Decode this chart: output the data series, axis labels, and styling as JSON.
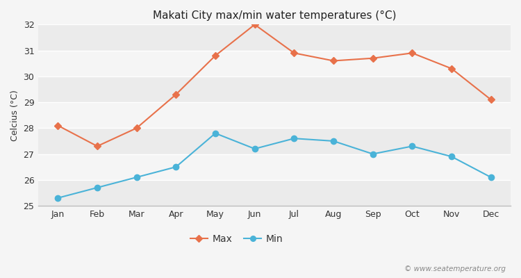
{
  "months": [
    "Jan",
    "Feb",
    "Mar",
    "Apr",
    "May",
    "Jun",
    "Jul",
    "Aug",
    "Sep",
    "Oct",
    "Nov",
    "Dec"
  ],
  "max_temps": [
    28.1,
    27.3,
    28.0,
    29.3,
    30.8,
    32.0,
    30.9,
    30.6,
    30.7,
    30.9,
    30.3,
    29.1
  ],
  "min_temps": [
    25.3,
    25.7,
    26.1,
    26.5,
    27.8,
    27.2,
    27.6,
    27.5,
    27.0,
    27.3,
    26.9,
    26.1
  ],
  "max_color": "#e8714a",
  "min_color": "#4ab3d8",
  "title": "Makati City max/min water temperatures (°C)",
  "ylabel": "Celcius (°C)",
  "ylim": [
    25,
    32
  ],
  "yticks": [
    25,
    26,
    27,
    28,
    29,
    30,
    31,
    32
  ],
  "outer_bg": "#f5f5f5",
  "band_colors": [
    "#ebebeb",
    "#f5f5f5"
  ],
  "grid_color": "#ffffff",
  "legend_labels": [
    "Max",
    "Min"
  ],
  "watermark": "© www.seatemperature.org"
}
